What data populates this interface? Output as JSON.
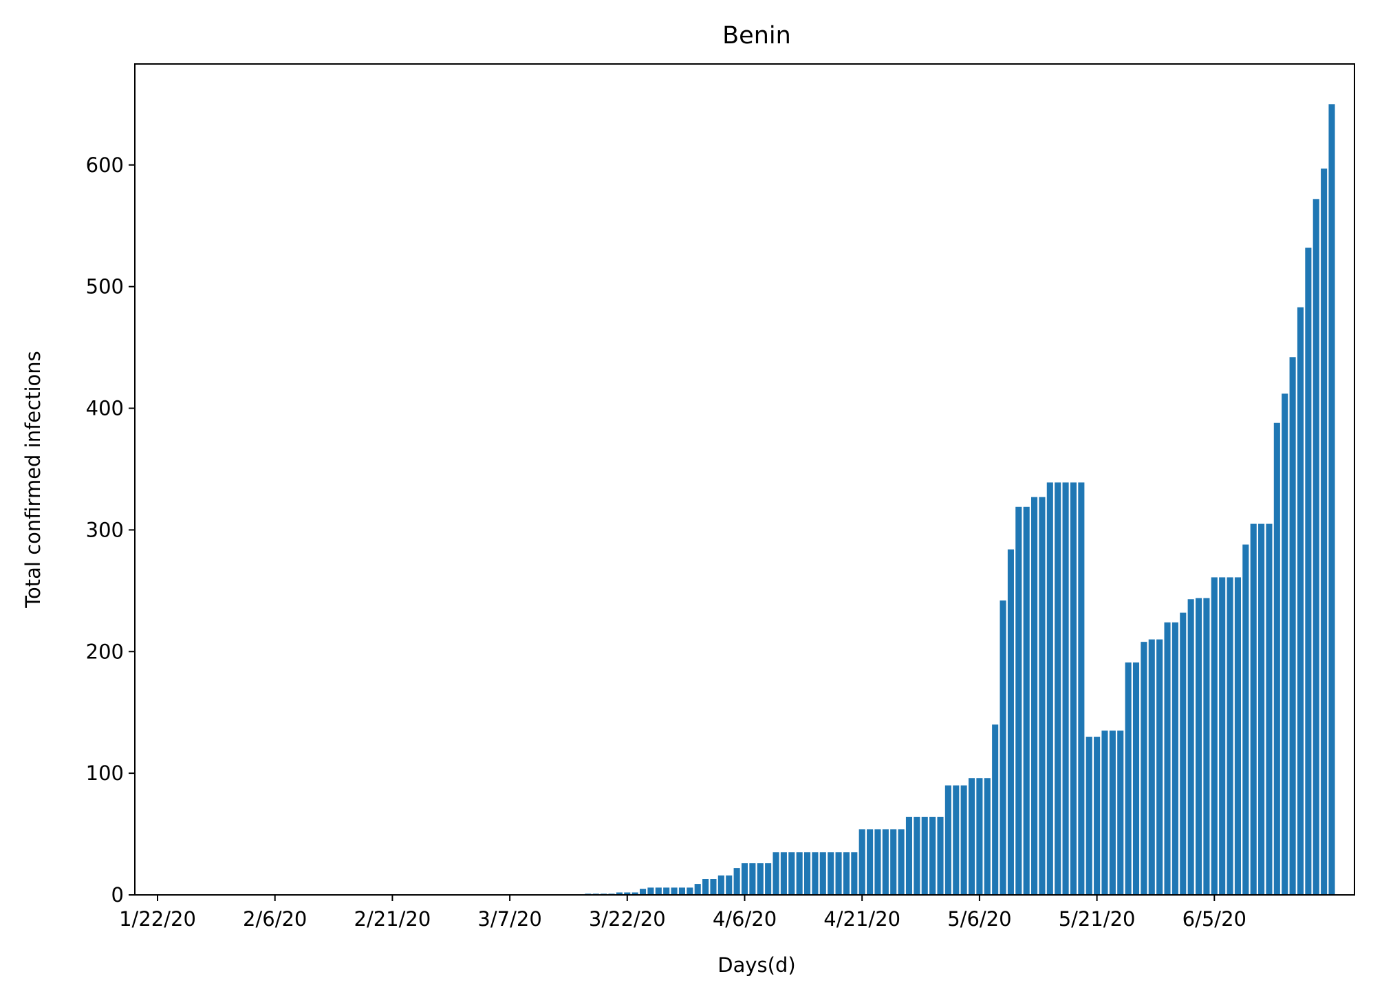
{
  "chart_data": {
    "type": "bar",
    "title": "Benin",
    "xlabel": "Days(d)",
    "ylabel": "Total confirmed infections",
    "ylim": [
      0,
      683
    ],
    "yticks": [
      0,
      100,
      200,
      300,
      400,
      500,
      600
    ],
    "grid": false,
    "bar_color": "#1f77b4",
    "categories": [
      "1/22/20",
      "1/23/20",
      "1/24/20",
      "1/25/20",
      "1/26/20",
      "1/27/20",
      "1/28/20",
      "1/29/20",
      "1/30/20",
      "1/31/20",
      "2/1/20",
      "2/2/20",
      "2/3/20",
      "2/4/20",
      "2/5/20",
      "2/6/20",
      "2/7/20",
      "2/8/20",
      "2/9/20",
      "2/10/20",
      "2/11/20",
      "2/12/20",
      "2/13/20",
      "2/14/20",
      "2/15/20",
      "2/16/20",
      "2/17/20",
      "2/18/20",
      "2/19/20",
      "2/20/20",
      "2/21/20",
      "2/22/20",
      "2/23/20",
      "2/24/20",
      "2/25/20",
      "2/26/20",
      "2/27/20",
      "2/28/20",
      "2/29/20",
      "3/1/20",
      "3/2/20",
      "3/3/20",
      "3/4/20",
      "3/5/20",
      "3/6/20",
      "3/7/20",
      "3/8/20",
      "3/9/20",
      "3/10/20",
      "3/11/20",
      "3/12/20",
      "3/13/20",
      "3/14/20",
      "3/15/20",
      "3/16/20",
      "3/17/20",
      "3/18/20",
      "3/19/20",
      "3/20/20",
      "3/21/20",
      "3/22/20",
      "3/23/20",
      "3/24/20",
      "3/25/20",
      "3/26/20",
      "3/27/20",
      "3/28/20",
      "3/29/20",
      "3/30/20",
      "3/31/20",
      "4/1/20",
      "4/2/20",
      "4/3/20",
      "4/4/20",
      "4/5/20",
      "4/6/20",
      "4/7/20",
      "4/8/20",
      "4/9/20",
      "4/10/20",
      "4/11/20",
      "4/12/20",
      "4/13/20",
      "4/14/20",
      "4/15/20",
      "4/16/20",
      "4/17/20",
      "4/18/20",
      "4/19/20",
      "4/20/20",
      "4/21/20",
      "4/22/20",
      "4/23/20",
      "4/24/20",
      "4/25/20",
      "4/26/20",
      "4/27/20",
      "4/28/20",
      "4/29/20",
      "4/30/20",
      "5/1/20",
      "5/2/20",
      "5/3/20",
      "5/4/20",
      "5/5/20",
      "5/6/20",
      "5/7/20",
      "5/8/20",
      "5/9/20",
      "5/10/20",
      "5/11/20",
      "5/12/20",
      "5/13/20",
      "5/14/20",
      "5/15/20",
      "5/16/20",
      "5/17/20",
      "5/18/20",
      "5/19/20",
      "5/20/20",
      "5/21/20",
      "5/22/20",
      "5/23/20",
      "5/24/20",
      "5/25/20",
      "5/26/20",
      "5/27/20",
      "5/28/20",
      "5/29/20",
      "5/30/20",
      "5/31/20",
      "6/1/20",
      "6/2/20",
      "6/3/20",
      "6/4/20",
      "6/5/20",
      "6/6/20",
      "6/7/20",
      "6/8/20",
      "6/9/20",
      "6/10/20",
      "6/11/20",
      "6/12/20",
      "6/13/20",
      "6/14/20",
      "6/15/20",
      "6/16/20",
      "6/17/20",
      "6/18/20",
      "6/19/20",
      "6/20/20"
    ],
    "tick_labels": [
      "1/22/20",
      "2/6/20",
      "2/21/20",
      "3/7/20",
      "3/22/20",
      "4/6/20",
      "4/21/20",
      "5/6/20",
      "5/21/20",
      "6/5/20"
    ],
    "values": [
      0,
      0,
      0,
      0,
      0,
      0,
      0,
      0,
      0,
      0,
      0,
      0,
      0,
      0,
      0,
      0,
      0,
      0,
      0,
      0,
      0,
      0,
      0,
      0,
      0,
      0,
      0,
      0,
      0,
      0,
      0,
      0,
      0,
      0,
      0,
      0,
      0,
      0,
      0,
      0,
      0,
      0,
      0,
      0,
      0,
      0,
      0,
      0,
      0,
      0,
      0,
      0,
      0,
      0,
      0,
      1,
      1,
      1,
      1,
      2,
      2,
      2,
      5,
      6,
      6,
      6,
      6,
      6,
      6,
      9,
      13,
      13,
      16,
      16,
      22,
      26,
      26,
      26,
      26,
      35,
      35,
      35,
      35,
      35,
      35,
      35,
      35,
      35,
      35,
      35,
      54,
      54,
      54,
      54,
      54,
      54,
      64,
      64,
      64,
      64,
      64,
      90,
      90,
      90,
      96,
      96,
      96,
      140,
      242,
      284,
      319,
      319,
      327,
      327,
      339,
      339,
      339,
      339,
      339,
      130,
      130,
      135,
      135,
      135,
      191,
      191,
      208,
      210,
      210,
      224,
      224,
      232,
      243,
      244,
      244,
      261,
      261,
      261,
      261,
      288,
      305,
      305,
      305,
      388,
      412,
      442,
      483,
      532,
      572,
      597,
      650
    ]
  }
}
